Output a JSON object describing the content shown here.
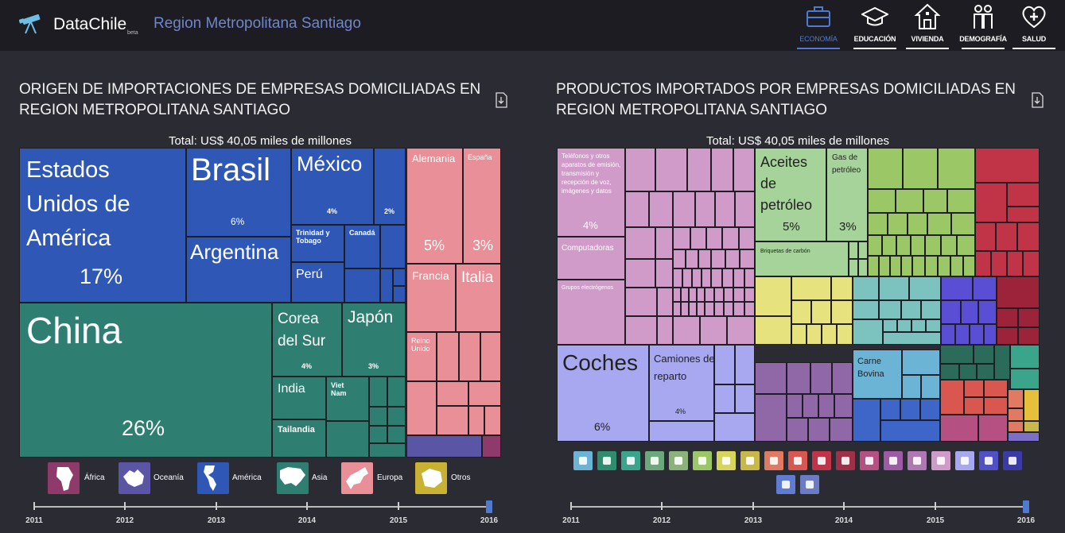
{
  "nav": {
    "brand": "DataChile",
    "beta": "beta",
    "region": "Region Metropolitana Santiago",
    "items": [
      {
        "label": "ECONOMÍA",
        "icon": "briefcase-icon"
      },
      {
        "label": "EDUCACIÓN",
        "icon": "graduation-cap-icon"
      },
      {
        "label": "VIVIENDA",
        "icon": "house-icon"
      },
      {
        "label": "DEMOGRAFÍA",
        "icon": "people-icon"
      },
      {
        "label": "SALUD",
        "icon": "heart-plus-icon"
      }
    ]
  },
  "left": {
    "title": "ORIGEN DE IMPORTACIONES DE EMPRESAS DOMICILIADAS EN REGION METROPOLITANA SANTIAGO",
    "total": "Total: US$ 40,05 miles de millones",
    "labels": {
      "usa": "Estados Unidos de América",
      "usa_pct": "17%",
      "brasil": "Brasil",
      "brasil_pct": "6%",
      "argentina": "Argentina",
      "mexico": "México",
      "mexico_pct": "4%",
      "other_am_pct": "2%",
      "trinidad": "Trinidad y Tobago",
      "canada": "Canadá",
      "peru": "Perú",
      "china": "China",
      "china_pct": "26%",
      "corea": "Corea del Sur",
      "corea_pct": "4%",
      "japon": "Japón",
      "japon_pct": "3%",
      "india": "India",
      "vietnam": "Viet Nam",
      "tailandia": "Tailandia",
      "alemania": "Alemania",
      "alemania_pct": "5%",
      "espana": "España",
      "espana_pct": "3%",
      "francia": "Francia",
      "italia": "Italia",
      "reino_unido": "Reino Unido"
    },
    "legend": [
      {
        "label": "África",
        "color": "#8e3a6b",
        "icon": "africa-icon"
      },
      {
        "label": "Oceanía",
        "color": "#5b55a6",
        "icon": "oceania-icon"
      },
      {
        "label": "América",
        "color": "#2f58b6",
        "icon": "america-icon"
      },
      {
        "label": "Asia",
        "color": "#2e7f72",
        "icon": "asia-icon"
      },
      {
        "label": "Europa",
        "color": "#e88f97",
        "icon": "europe-icon"
      },
      {
        "label": "Otros",
        "color": "#c9b233",
        "icon": "antarctica-icon"
      }
    ],
    "years": [
      "2011",
      "2012",
      "2013",
      "2014",
      "2015",
      "2016"
    ],
    "selected_year": "2016"
  },
  "right": {
    "title": "PRODUCTOS IMPORTADOS POR EMPRESAS DOMICILIADAS EN REGION METROPOLITANA SANTIAGO",
    "total": "Total: US$ 40,05 miles de millones",
    "labels": {
      "telefonos": "Teléfonos y otros aparatos de emisión, transmisión y recepción de voz, imágenes y datos",
      "telefonos_pct": "4%",
      "computadoras": "Computadoras",
      "grupos": "Grupos electrógenos",
      "aceites": "Aceites de petróleo",
      "aceites_pct": "5%",
      "gas": "Gas de petróleo",
      "gas_pct": "3%",
      "briquetas": "Briquetas de carbón",
      "coches": "Coches",
      "coches_pct": "6%",
      "camiones": "Camiones de reparto",
      "camiones_pct": "4%",
      "carne": "Carne Bovina"
    },
    "product_icons": [
      {
        "name": "animal-products-icon",
        "color": "#6cb4d6"
      },
      {
        "name": "vegetable-products-icon",
        "color": "#2f8d6f"
      },
      {
        "name": "food-icon",
        "color": "#3aa58a"
      },
      {
        "name": "grain-icon",
        "color": "#6ba87c"
      },
      {
        "name": "mineral-icon",
        "color": "#8bb27a"
      },
      {
        "name": "chemical-icon",
        "color": "#9bc766"
      },
      {
        "name": "plastics-icon",
        "color": "#d7d55a"
      },
      {
        "name": "leather-icon",
        "color": "#c9b74a"
      },
      {
        "name": "wood-icon",
        "color": "#e07a62"
      },
      {
        "name": "paper-icon",
        "color": "#d9574f"
      },
      {
        "name": "textile-icon",
        "color": "#c13448"
      },
      {
        "name": "footwear-icon",
        "color": "#a03048"
      },
      {
        "name": "stone-icon",
        "color": "#b45182"
      },
      {
        "name": "gems-icon",
        "color": "#9d5aa5"
      },
      {
        "name": "metals-icon",
        "color": "#b078b3"
      },
      {
        "name": "machinery-icon",
        "color": "#d09bc8"
      },
      {
        "name": "transport-icon",
        "color": "#a7a8ef"
      },
      {
        "name": "instruments-icon",
        "color": "#5050c8"
      },
      {
        "name": "arms-icon",
        "color": "#3b3ba8"
      },
      {
        "name": "misc-icon",
        "color": "#2b3d9a"
      },
      {
        "name": "art-icon",
        "color": "#5f7bd2"
      },
      {
        "name": "unknown-icon",
        "color": "#6b7bc4"
      }
    ],
    "years": [
      "2011",
      "2012",
      "2013",
      "2014",
      "2015",
      "2016"
    ],
    "selected_year": "2016"
  }
}
